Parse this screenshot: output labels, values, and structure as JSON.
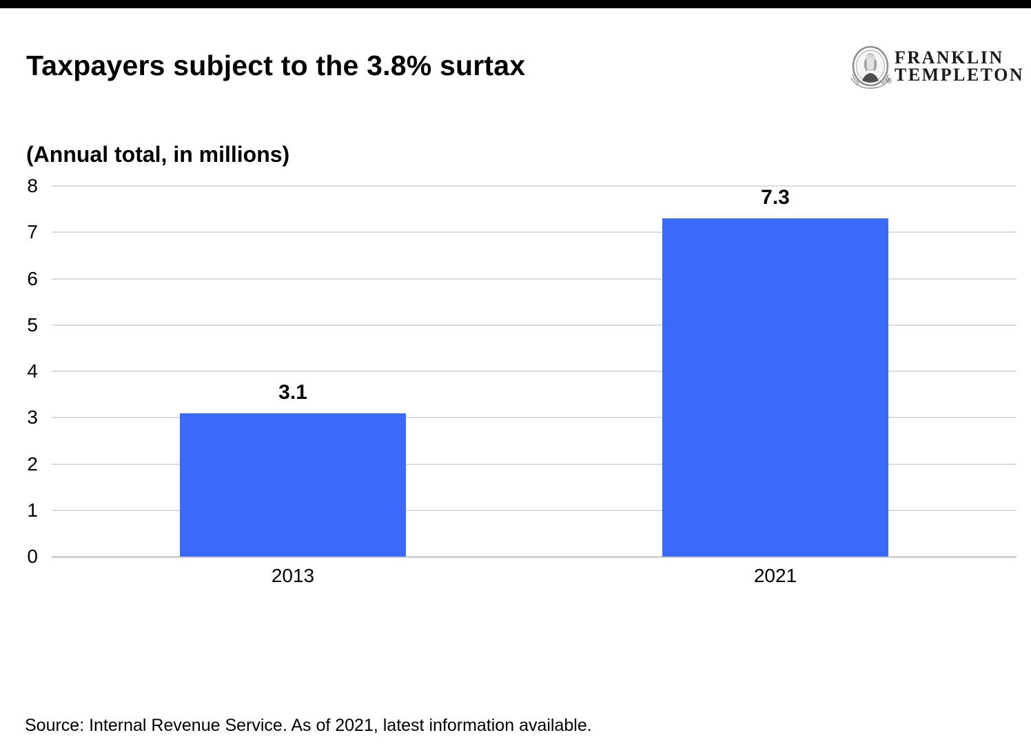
{
  "header": {
    "title": "Taxpayers subject to the 3.8% surtax"
  },
  "logo": {
    "line1": "FRANKLIN",
    "line2": "TEMPLETON",
    "registered": "®",
    "medallion_icon": "benjamin-franklin-portrait-medallion"
  },
  "chart_data": {
    "type": "bar",
    "title": "Taxpayers subject to the 3.8% surtax",
    "subtitle": "(Annual total, in millions)",
    "categories": [
      "2013",
      "2021"
    ],
    "values": [
      3.1,
      7.3
    ],
    "value_labels": [
      "3.1",
      "7.3"
    ],
    "xlabel": "",
    "ylabel": "(Annual total, in millions)",
    "ylim": [
      0,
      8
    ],
    "yticks": [
      0,
      1,
      2,
      3,
      4,
      5,
      6,
      7,
      8
    ],
    "grid": "horizontal",
    "legend": "none",
    "bar_color": "#3A6AFA"
  },
  "colors": {
    "bar": "#3A6AFA",
    "gridline": "#DBDBDB",
    "baseline": "#D2D2D2",
    "top_bar": "#000000",
    "text": "#000000",
    "logo_text": "#1B1B1B"
  },
  "footer": {
    "source": "Source: Internal Revenue Service. As of 2021, latest information available."
  }
}
